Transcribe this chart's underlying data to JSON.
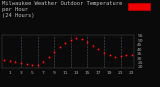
{
  "title": "Milwaukee Weather Outdoor Temperature\nper Hour\n(24 Hours)",
  "hours": [
    0,
    1,
    2,
    3,
    4,
    5,
    6,
    7,
    8,
    9,
    10,
    11,
    12,
    13,
    14,
    15,
    16,
    17,
    18,
    19,
    20,
    21,
    22,
    23
  ],
  "temperatures": [
    28,
    27,
    26,
    24,
    23,
    22,
    22,
    26,
    31,
    37,
    42,
    47,
    50,
    52,
    51,
    48,
    44,
    40,
    36,
    33,
    31,
    32,
    33,
    33
  ],
  "dot_color_main": "#dd0000",
  "dot_color_alt": "#ff6666",
  "bg_color": "#0a0a0a",
  "grid_color": "#555566",
  "axis_color": "#555555",
  "tick_color": "#aaaaaa",
  "title_color": "#bbbbbb",
  "legend_rect_color": "#ff0000",
  "ylim": [
    19,
    56
  ],
  "ytick_vals": [
    20,
    25,
    30,
    35,
    40,
    45,
    50,
    55
  ],
  "vgrid_hours": [
    3,
    6,
    9,
    12,
    15,
    18,
    21
  ],
  "title_fontsize": 4.0,
  "tick_fontsize": 3.2,
  "xlim": [
    -0.5,
    23.5
  ]
}
